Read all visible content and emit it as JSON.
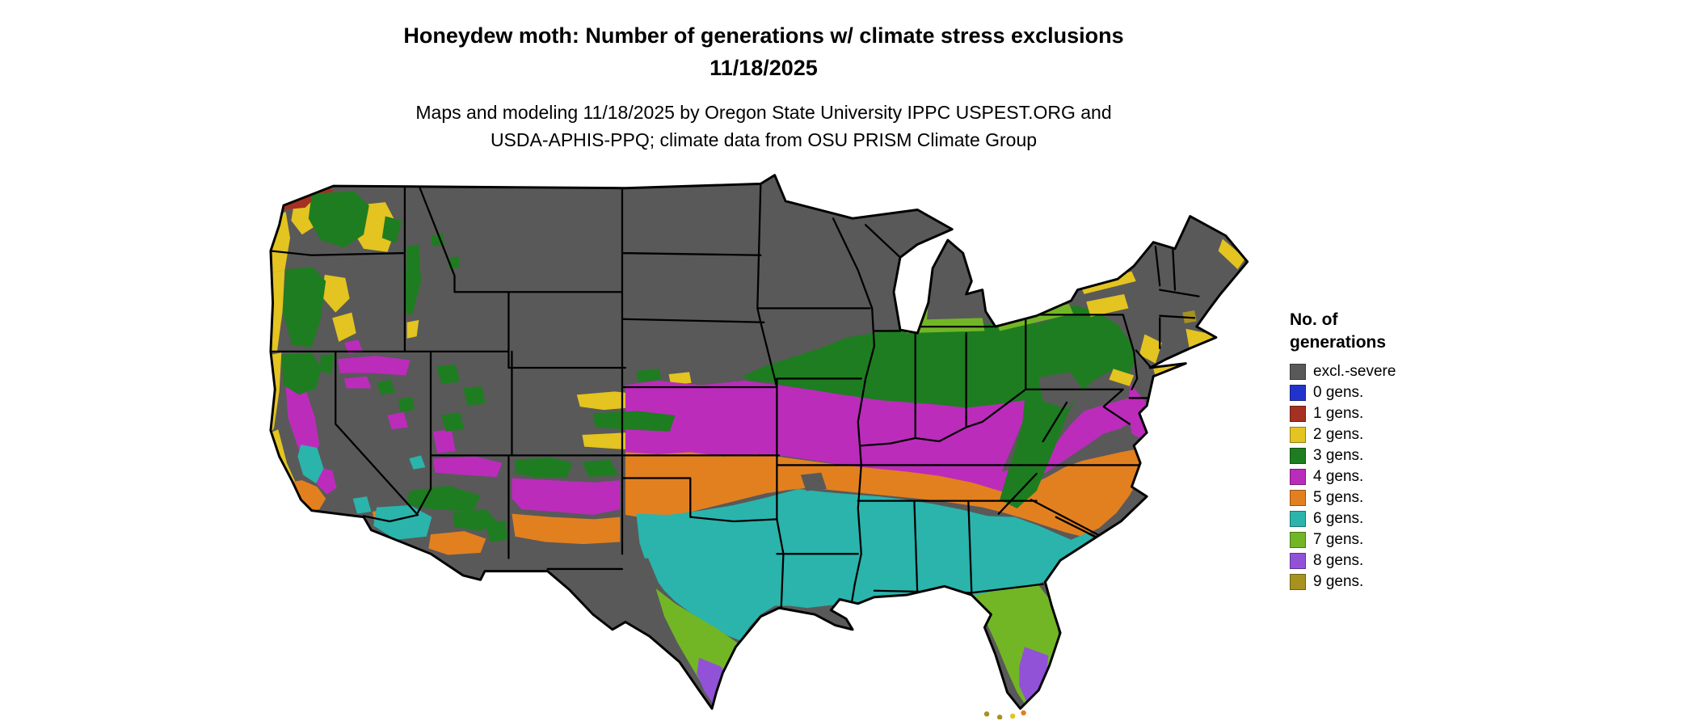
{
  "title_line1": "Honeydew moth: Number of generations w/ climate stress exclusions",
  "title_line2": "11/18/2025",
  "subtitle_line1": "Maps and modeling 11/18/2025 by Oregon State University IPPC USPEST.ORG and",
  "subtitle_line2": "USDA-APHIS-PPQ; climate data from OSU PRISM Climate Group",
  "legend": {
    "title_line1": "No. of",
    "title_line2": "generations",
    "items": [
      {
        "label": "excl.-severe",
        "key": "excl_severe"
      },
      {
        "label": "0 gens.",
        "key": "gen0"
      },
      {
        "label": "1 gens.",
        "key": "gen1"
      },
      {
        "label": "2 gens.",
        "key": "gen2"
      },
      {
        "label": "3 gens.",
        "key": "gen3"
      },
      {
        "label": "4 gens.",
        "key": "gen4"
      },
      {
        "label": "5 gens.",
        "key": "gen5"
      },
      {
        "label": "6 gens.",
        "key": "gen6"
      },
      {
        "label": "7 gens.",
        "key": "gen7"
      },
      {
        "label": "8 gens.",
        "key": "gen8"
      },
      {
        "label": "9 gens.",
        "key": "gen9"
      }
    ]
  },
  "palette": {
    "excl_severe": "#595959",
    "gen0": "#2233cc",
    "gen1": "#a63022",
    "gen2": "#e3c420",
    "gen3": "#1e7d20",
    "gen4": "#bb2cbb",
    "gen5": "#e2801f",
    "gen6": "#2ab4ac",
    "gen7": "#72b626",
    "gen8": "#9152d8",
    "gen9": "#a8921f"
  },
  "map": {
    "region": "Conterminous United States",
    "background_color": "#ffffff",
    "boundary_color": "#000000",
    "bands_north_to_south": [
      "excl.-severe (gray) across northern states",
      "3 gens. (dark green) across central Midwest and Appalachians",
      "4 gens. (magenta) across Kansas, Missouri, Kentucky, Virginia",
      "5 gens. (orange) across Oklahoma, Arkansas, Tennessee, Carolinas",
      "6 gens. (teal) across central Texas, Gulf states, coastal Southeast",
      "7 gens. (yellow-green) in south Texas and peninsular Florida",
      "8 gens. (purple) at the south Texas tip and south Florida",
      "9 gens. (olive) in the Florida Keys"
    ]
  }
}
